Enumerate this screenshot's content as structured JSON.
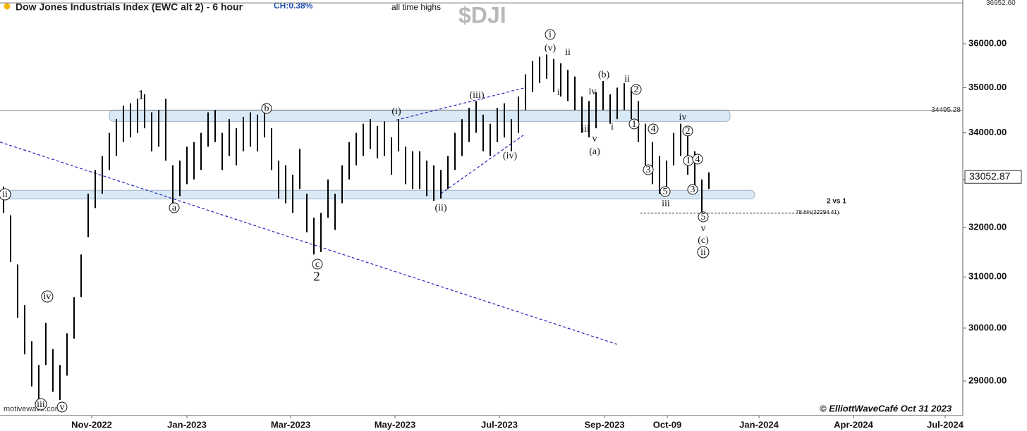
{
  "chart_data": {
    "type": "hilo",
    "title": "Dow Jones Industrials Index (EWC alt 2) - 6 hour",
    "change": "CH:0.38%",
    "symbol": "$DJI",
    "note": "all time highs",
    "source": "motivewave.com",
    "copyright": "© ElliottWaveCafé Oct 31 2023",
    "color": "#000000",
    "log_scale": true,
    "ylim": [
      28366,
      37022
    ],
    "yticks": [
      {
        "value": 29000,
        "label": "29000.00"
      },
      {
        "value": 30000,
        "label": "30000.00"
      },
      {
        "value": 31000,
        "label": "31000.00"
      },
      {
        "value": 32000,
        "label": "32000.00"
      },
      {
        "value": 33000,
        "label": "33000.00"
      },
      {
        "value": 34000,
        "label": "34000.00"
      },
      {
        "value": 35000,
        "label": "35000.00"
      },
      {
        "value": 36000,
        "label": "36000.00"
      }
    ],
    "xlim": [
      -0.5,
      136
    ],
    "xticks": [
      {
        "value": 12.5,
        "label": "Nov-2022"
      },
      {
        "value": 26,
        "label": "Jan-2023"
      },
      {
        "value": 40.7,
        "label": "Mar-2023"
      },
      {
        "value": 55.5,
        "label": "May-2023"
      },
      {
        "value": 70.3,
        "label": "Jul-2023"
      },
      {
        "value": 85.2,
        "label": "Sep-2023"
      },
      {
        "value": 94.1,
        "label": "Oct-09"
      },
      {
        "value": 107.1,
        "label": "Jan-2024"
      },
      {
        "value": 120.5,
        "label": "Apr-2024"
      },
      {
        "value": 133.5,
        "label": "Jul-2024"
      }
    ],
    "series": [
      {
        "name": "$DJI",
        "high": [
          32850,
          32250,
          31250,
          30450,
          29750,
          29300,
          30100,
          29600,
          29300,
          29900,
          30600,
          31450,
          32700,
          33200,
          33500,
          34000,
          34300,
          34600,
          34650,
          34750,
          34850,
          34450,
          34500,
          34750,
          33300,
          33400,
          33700,
          33800,
          34000,
          34450,
          34500,
          34000,
          34300,
          34100,
          34350,
          34450,
          34400,
          34600,
          34100,
          33400,
          33300,
          33100,
          33650,
          32700,
          32200,
          32300,
          33000,
          32700,
          33300,
          33800,
          34000,
          34200,
          34300,
          34150,
          34250,
          33900,
          34300,
          33700,
          33600,
          33600,
          33400,
          33300,
          33200,
          33500,
          34000,
          34300,
          34550,
          34700,
          34400,
          34200,
          34550,
          34650,
          34300,
          34800,
          35300,
          35600,
          35700,
          35750,
          35650,
          35550,
          35400,
          35250,
          34800,
          34700,
          34900,
          35150,
          34850,
          35000,
          35100,
          35000,
          34700,
          34200,
          33800,
          33500,
          33400,
          34000,
          34200,
          34000,
          33600,
          33000,
          33150
        ],
        "low": [
          32300,
          31300,
          30200,
          29500,
          28900,
          28600,
          29300,
          28800,
          28650,
          29100,
          29800,
          30600,
          31800,
          32400,
          32700,
          33200,
          33500,
          33800,
          33900,
          34000,
          34100,
          33600,
          33700,
          33400,
          32500,
          32650,
          32900,
          33000,
          33200,
          33700,
          33800,
          33200,
          33500,
          33300,
          33600,
          33700,
          33600,
          33900,
          33200,
          32600,
          32500,
          32300,
          32800,
          31900,
          31450,
          31500,
          32200,
          31950,
          32500,
          33000,
          33300,
          33500,
          33650,
          33450,
          33500,
          33100,
          33600,
          32900,
          32800,
          32800,
          32650,
          32550,
          32600,
          32800,
          33200,
          33500,
          33800,
          34000,
          33600,
          33500,
          33800,
          33900,
          33600,
          34000,
          34500,
          34900,
          35100,
          35200,
          34900,
          34800,
          34700,
          34500,
          34000,
          33900,
          34100,
          34500,
          34200,
          34300,
          34500,
          34300,
          33800,
          33300,
          32900,
          32700,
          32700,
          33300,
          33500,
          33100,
          32800,
          32300,
          32800
        ]
      }
    ],
    "last": {
      "value": 33052.87,
      "label": "33052.87"
    },
    "hlines": [
      {
        "value": 36952.6,
        "label": "36952.60"
      },
      {
        "value": 34495.28,
        "label": "34495.28"
      },
      {
        "value": 32294.41,
        "label": "78.6%(32294.41)"
      }
    ],
    "zones": [
      [
        34250,
        34500
      ],
      [
        32590,
        32770
      ]
    ],
    "trendlines": [
      [
        -0.5,
        33800,
        87,
        29690
      ],
      [
        55.7,
        34280,
        74,
        35000
      ],
      [
        62,
        32700,
        73.7,
        33950
      ]
    ],
    "comparison": "2 vs 1",
    "annotations": [
      {
        "text": "ii",
        "circled": true
      },
      {
        "text": "iv",
        "circled": true
      },
      {
        "text": "iii",
        "circled": true
      },
      {
        "text": "v",
        "circled": true
      },
      {
        "text": "1",
        "circled": false
      },
      {
        "text": "a",
        "circled": true
      },
      {
        "text": "b",
        "circled": true
      },
      {
        "text": "c",
        "circled": true
      },
      {
        "text": "2",
        "circled": false
      },
      {
        "text": "(i)",
        "circled": false
      },
      {
        "text": "(ii)",
        "circled": false
      },
      {
        "text": "(iii)",
        "circled": false
      },
      {
        "text": "(iv)",
        "circled": false
      },
      {
        "text": "i",
        "circled": true
      },
      {
        "text": "(v)",
        "circled": false
      },
      {
        "text": "ii",
        "circled": false
      },
      {
        "text": "i",
        "circled": false
      },
      {
        "text": "iv",
        "circled": false
      },
      {
        "text": "iii",
        "circled": false
      },
      {
        "text": "v",
        "circled": false
      },
      {
        "text": "(a)",
        "circled": false
      },
      {
        "text": "(b)",
        "circled": false
      },
      {
        "text": "ii",
        "circled": false
      },
      {
        "text": "2",
        "circled": true
      },
      {
        "text": "i",
        "circled": false
      },
      {
        "text": "1",
        "circled": true
      },
      {
        "text": "4",
        "circled": true
      },
      {
        "text": "3",
        "circled": true
      },
      {
        "text": "5",
        "circled": true
      },
      {
        "text": "iii",
        "circled": false
      },
      {
        "text": "iv",
        "circled": false
      },
      {
        "text": "2",
        "circled": true
      },
      {
        "text": "1",
        "circled": true
      },
      {
        "text": "4",
        "circled": true
      },
      {
        "text": "3",
        "circled": true
      },
      {
        "text": "5",
        "circled": true
      },
      {
        "text": "v",
        "circled": false
      },
      {
        "text": "(c)",
        "circled": false
      },
      {
        "text": "ii",
        "circled": true
      }
    ]
  }
}
